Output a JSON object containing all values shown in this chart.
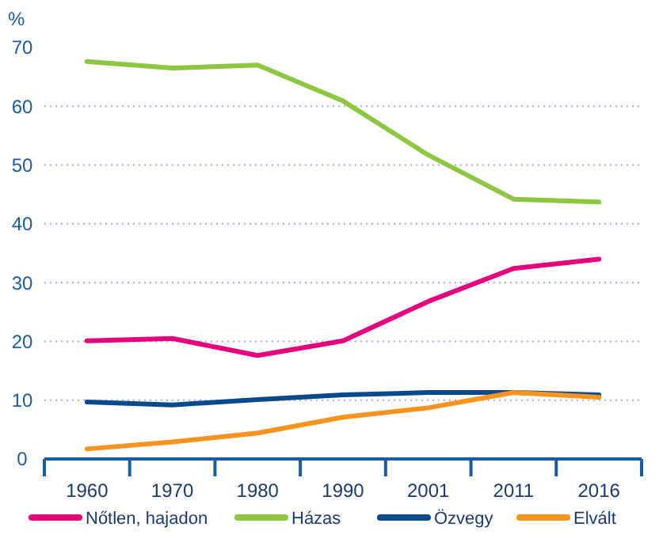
{
  "chart_data": {
    "type": "line",
    "ylabel": "%",
    "categories": [
      "1960",
      "1970",
      "1980",
      "1990",
      "2001",
      "2011",
      "2016"
    ],
    "series": [
      {
        "name": "Nőtlen, hajadon",
        "color": "#e6007e",
        "values": [
          20.1,
          20.5,
          17.6,
          20.1,
          26.8,
          32.4,
          34.0
        ]
      },
      {
        "name": "Házas",
        "color": "#8dc63f",
        "values": [
          67.6,
          66.5,
          67,
          60.9,
          51.7,
          44.2,
          43.7
        ]
      },
      {
        "name": "Özvegy",
        "color": "#0a4a8c",
        "values": [
          9.7,
          9.2,
          10.1,
          10.9,
          11.3,
          11.3,
          10.9
        ]
      },
      {
        "name": "Elvált",
        "color": "#f7941d",
        "values": [
          1.7,
          2.9,
          4.4,
          7.1,
          8.7,
          11.3,
          10.5
        ]
      }
    ],
    "ylim": [
      0,
      70
    ],
    "yticks": [
      0,
      10,
      20,
      30,
      40,
      50,
      60,
      70
    ],
    "grid": "y",
    "legend": "bottom",
    "marker": "none",
    "line_style": "solid"
  }
}
